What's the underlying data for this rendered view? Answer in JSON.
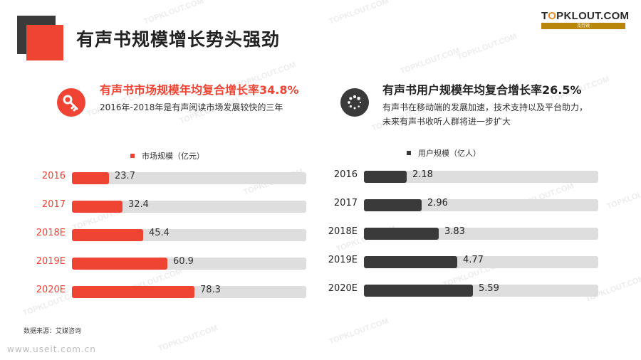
{
  "header": {
    "title": "有声书规模增长势头强劲",
    "logo": {
      "brand_prefix": "T",
      "brand_o": "O",
      "brand_rest": "PKLOUT.COM",
      "tagline": "克劳锐"
    }
  },
  "watermark_text": "TOPKLOUT.COM",
  "left_section": {
    "icon": "key-icon",
    "title": "有声书市场规模年均复合增长率34.8%",
    "description": "2016年-2018年是有声阅读市场发展较快的三年"
  },
  "right_section": {
    "icon": "loading-spinner-icon",
    "title": "有声书用户规模年均复合增长率26.5%",
    "description": "有声书在移动端的发展加速，技术支持以及平台助力，未来有声书收听人群将进一步扩大"
  },
  "colors": {
    "accent": "#ef4433",
    "dark": "#3a3a3a",
    "track": "#dedede"
  },
  "chart_data": [
    {
      "type": "bar",
      "orientation": "horizontal",
      "title": "",
      "series": [
        {
          "name": "市场规模（亿元）",
          "color": "#ef4433",
          "values": [
            23.7,
            32.4,
            45.4,
            60.9,
            78.3
          ]
        }
      ],
      "categories": [
        "2016",
        "2017",
        "2018E",
        "2019E",
        "2020E"
      ],
      "value_labels": [
        "23.7",
        "32.4",
        "45.4",
        "60.9",
        "78.3"
      ],
      "xlim": [
        0,
        150
      ],
      "legend": "top"
    },
    {
      "type": "bar",
      "orientation": "horizontal",
      "title": "",
      "series": [
        {
          "name": "用户规模（亿人）",
          "color": "#3a3a3a",
          "values": [
            2.18,
            2.96,
            3.83,
            4.77,
            5.59
          ]
        }
      ],
      "categories": [
        "2016",
        "2017",
        "2018E",
        "2019E",
        "2020E"
      ],
      "value_labels": [
        "2.18",
        "2.96",
        "3.83",
        "4.77",
        "5.59"
      ],
      "xlim": [
        0,
        12
      ],
      "legend": "top"
    }
  ],
  "footer": {
    "source": "数据来源：艾媒咨询",
    "site": "www.useit.com.cn"
  }
}
